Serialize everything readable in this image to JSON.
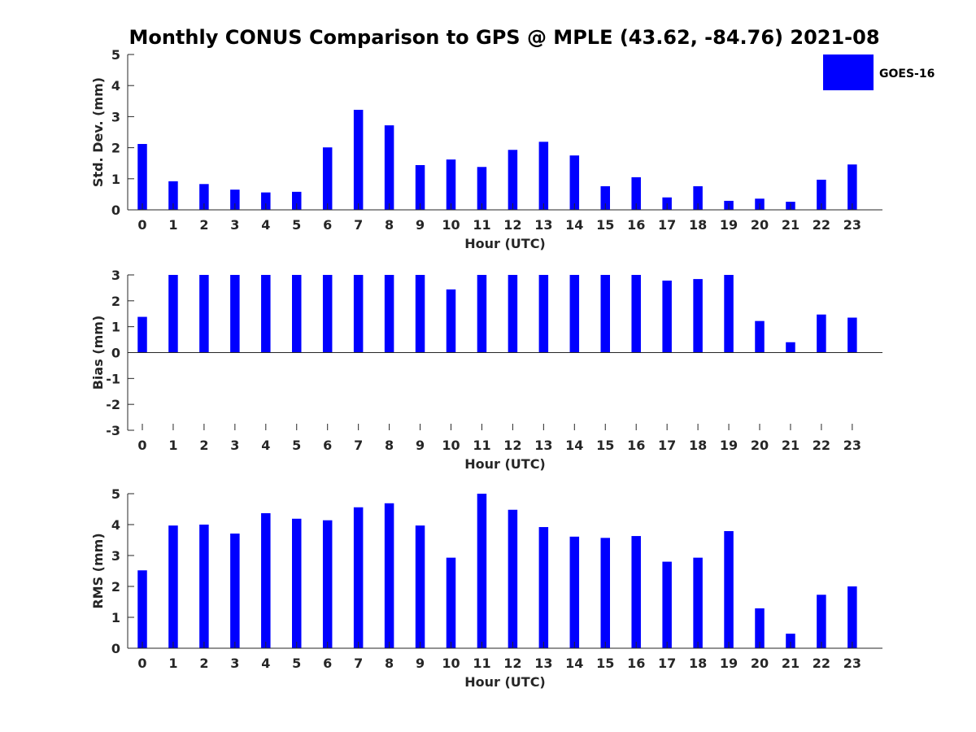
{
  "chart_data": {
    "type": "bar",
    "title": "Monthly CONUS Comparison to GPS @ MPLE (43.62, -84.76) 2021-08",
    "legend": {
      "label": "GOES-16",
      "color": "#0000ff",
      "placement": "top-right"
    },
    "categories": [
      "0",
      "1",
      "2",
      "3",
      "4",
      "5",
      "6",
      "7",
      "8",
      "9",
      "10",
      "11",
      "12",
      "13",
      "14",
      "15",
      "16",
      "17",
      "18",
      "19",
      "20",
      "21",
      "22",
      "23"
    ],
    "panels": [
      {
        "id": "std",
        "ylabel": "Std. Dev. (mm)",
        "xlabel": "Hour (UTC)",
        "ylim": [
          0,
          5
        ],
        "yticks": [
          0,
          1,
          2,
          3,
          4,
          5
        ],
        "series": [
          {
            "name": "GOES-16",
            "values": [
              2.12,
              0.92,
              0.83,
              0.65,
              0.56,
              0.58,
              2.01,
              3.22,
              2.72,
              1.44,
              1.62,
              1.38,
              1.93,
              2.19,
              1.75,
              0.76,
              1.05,
              0.4,
              0.76,
              0.29,
              0.36,
              0.26,
              0.97,
              1.46
            ]
          }
        ]
      },
      {
        "id": "bias",
        "ylabel": "Bias (mm)",
        "xlabel": "Hour (UTC)",
        "ylim": [
          -3,
          3
        ],
        "yticks": [
          -3,
          -2,
          -1,
          0,
          1,
          2,
          3
        ],
        "series": [
          {
            "name": "GOES-16",
            "values": [
              1.38,
              3.0,
              3.0,
              3.0,
              3.0,
              3.0,
              3.0,
              3.0,
              3.0,
              3.0,
              2.44,
              3.0,
              3.0,
              3.0,
              3.0,
              3.0,
              3.0,
              2.78,
              2.84,
              3.0,
              1.22,
              0.4,
              1.47,
              1.35
            ]
          }
        ]
      },
      {
        "id": "rms",
        "ylabel": "RMS (mm)",
        "xlabel": "Hour (UTC)",
        "ylim": [
          0,
          5
        ],
        "yticks": [
          0,
          1,
          2,
          3,
          4,
          5
        ],
        "series": [
          {
            "name": "GOES-16",
            "values": [
              2.52,
              3.97,
              4.0,
              3.71,
              4.37,
              4.19,
              4.14,
              4.56,
              4.69,
              3.97,
              2.93,
              5.0,
              4.48,
              3.92,
              3.61,
              3.57,
              3.63,
              2.8,
              2.93,
              3.79,
              1.29,
              0.47,
              1.73,
              2.0
            ]
          }
        ]
      }
    ]
  }
}
